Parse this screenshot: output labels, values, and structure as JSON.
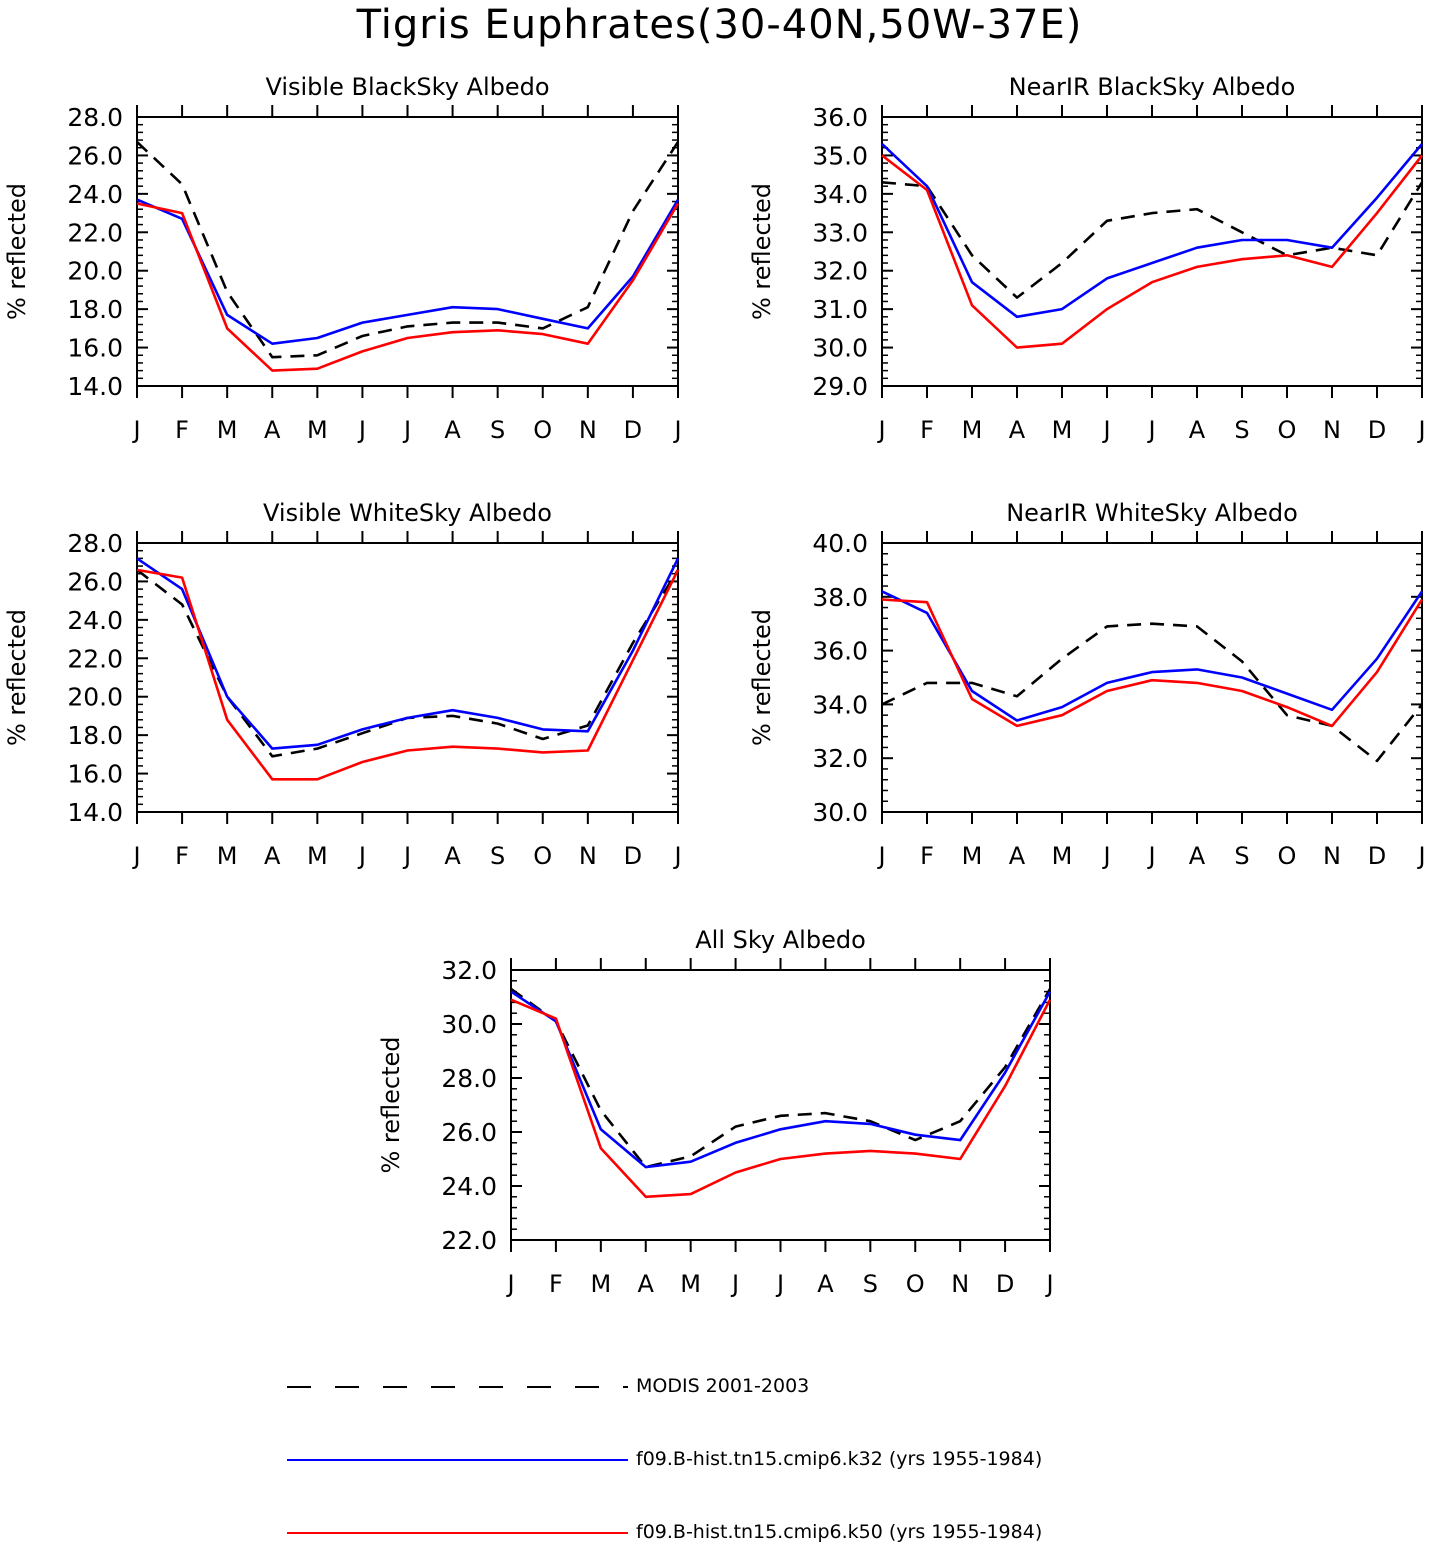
{
  "page_title": "Tigris Euphrates(30-40N,50W-37E)",
  "colors": {
    "MODIS": "#000000",
    "k32": "#0000ff",
    "k50": "#ff0000"
  },
  "legend": [
    {
      "key": "MODIS",
      "label": "MODIS 2001-2003",
      "style": "dashed"
    },
    {
      "key": "k32",
      "label": "f09.B-hist.tn15.cmip6.k32 (yrs 1955-1984)",
      "style": "solid"
    },
    {
      "key": "k50",
      "label": "f09.B-hist.tn15.cmip6.k50 (yrs 1955-1984)",
      "style": "solid"
    }
  ],
  "chart_data": [
    {
      "type": "line",
      "title": "Visible BlackSky Albedo",
      "ylabel": "% reflected",
      "categories": [
        "J",
        "F",
        "M",
        "A",
        "M",
        "J",
        "J",
        "A",
        "S",
        "O",
        "N",
        "D",
        "J"
      ],
      "ylim": [
        14.0,
        28.0
      ],
      "yticks": [
        "14.0",
        "16.0",
        "18.0",
        "20.0",
        "22.0",
        "24.0",
        "26.0",
        "28.0"
      ],
      "series": [
        {
          "name": "MODIS 2001-2003",
          "key": "MODIS",
          "values": [
            26.7,
            24.5,
            18.9,
            15.5,
            15.6,
            16.6,
            17.1,
            17.3,
            17.3,
            17.0,
            18.1,
            23.1,
            26.7
          ]
        },
        {
          "name": "f09.B-hist.tn15.cmip6.k32 (yrs 1955-1984)",
          "key": "k32",
          "values": [
            23.7,
            22.7,
            17.7,
            16.2,
            16.5,
            17.3,
            17.7,
            18.1,
            18.0,
            17.5,
            17.0,
            19.7,
            23.7
          ]
        },
        {
          "name": "f09.B-hist.tn15.cmip6.k50 (yrs 1955-1984)",
          "key": "k50",
          "values": [
            23.5,
            23.0,
            17.0,
            14.8,
            14.9,
            15.8,
            16.5,
            16.8,
            16.9,
            16.7,
            16.2,
            19.5,
            23.5
          ]
        }
      ]
    },
    {
      "type": "line",
      "title": "NearIR BlackSky Albedo",
      "ylabel": "% reflected",
      "categories": [
        "J",
        "F",
        "M",
        "A",
        "M",
        "J",
        "J",
        "A",
        "S",
        "O",
        "N",
        "D",
        "J"
      ],
      "ylim": [
        29.0,
        36.0
      ],
      "yticks": [
        "29.0",
        "30.0",
        "31.0",
        "32.0",
        "33.0",
        "34.0",
        "35.0",
        "36.0"
      ],
      "series": [
        {
          "name": "MODIS 2001-2003",
          "key": "MODIS",
          "values": [
            34.3,
            34.2,
            32.4,
            31.3,
            32.2,
            33.3,
            33.5,
            33.6,
            33.0,
            32.4,
            32.6,
            32.4,
            34.3
          ]
        },
        {
          "name": "f09.B-hist.tn15.cmip6.k32 (yrs 1955-1984)",
          "key": "k32",
          "values": [
            35.3,
            34.2,
            31.7,
            30.8,
            31.0,
            31.8,
            32.2,
            32.6,
            32.8,
            32.8,
            32.6,
            33.9,
            35.3
          ]
        },
        {
          "name": "f09.B-hist.tn15.cmip6.k50 (yrs 1955-1984)",
          "key": "k50",
          "values": [
            35.0,
            34.1,
            31.1,
            30.0,
            30.1,
            31.0,
            31.7,
            32.1,
            32.3,
            32.4,
            32.1,
            33.5,
            35.0
          ]
        }
      ]
    },
    {
      "type": "line",
      "title": "Visible WhiteSky Albedo",
      "ylabel": "% reflected",
      "categories": [
        "J",
        "F",
        "M",
        "A",
        "M",
        "J",
        "J",
        "A",
        "S",
        "O",
        "N",
        "D",
        "J"
      ],
      "ylim": [
        14.0,
        28.0
      ],
      "yticks": [
        "14.0",
        "16.0",
        "18.0",
        "20.0",
        "22.0",
        "24.0",
        "26.0",
        "28.0"
      ],
      "series": [
        {
          "name": "MODIS 2001-2003",
          "key": "MODIS",
          "values": [
            26.6,
            24.8,
            20.0,
            16.9,
            17.3,
            18.1,
            18.9,
            19.0,
            18.6,
            17.8,
            18.5,
            22.8,
            26.6
          ]
        },
        {
          "name": "f09.B-hist.tn15.cmip6.k32 (yrs 1955-1984)",
          "key": "k32",
          "values": [
            27.2,
            25.6,
            20.0,
            17.3,
            17.5,
            18.3,
            18.9,
            19.3,
            18.9,
            18.3,
            18.2,
            22.4,
            27.2
          ]
        },
        {
          "name": "f09.B-hist.tn15.cmip6.k50 (yrs 1955-1984)",
          "key": "k50",
          "values": [
            26.6,
            26.2,
            18.8,
            15.7,
            15.7,
            16.6,
            17.2,
            17.4,
            17.3,
            17.1,
            17.2,
            21.9,
            26.6
          ]
        }
      ]
    },
    {
      "type": "line",
      "title": "NearIR WhiteSky Albedo",
      "ylabel": "% reflected",
      "categories": [
        "J",
        "F",
        "M",
        "A",
        "M",
        "J",
        "J",
        "A",
        "S",
        "O",
        "N",
        "D",
        "J"
      ],
      "ylim": [
        30.0,
        40.0
      ],
      "yticks": [
        "30.0",
        "32.0",
        "34.0",
        "36.0",
        "38.0",
        "40.0"
      ],
      "series": [
        {
          "name": "MODIS 2001-2003",
          "key": "MODIS",
          "values": [
            34.0,
            34.8,
            34.8,
            34.3,
            35.7,
            36.9,
            37.0,
            36.9,
            35.6,
            33.6,
            33.2,
            31.9,
            34.0
          ]
        },
        {
          "name": "f09.B-hist.tn15.cmip6.k32 (yrs 1955-1984)",
          "key": "k32",
          "values": [
            38.2,
            37.4,
            34.5,
            33.4,
            33.9,
            34.8,
            35.2,
            35.3,
            35.0,
            34.4,
            33.8,
            35.7,
            38.2
          ]
        },
        {
          "name": "f09.B-hist.tn15.cmip6.k50 (yrs 1955-1984)",
          "key": "k50",
          "values": [
            37.9,
            37.8,
            34.2,
            33.2,
            33.6,
            34.5,
            34.9,
            34.8,
            34.5,
            33.9,
            33.2,
            35.2,
            37.9
          ]
        }
      ]
    },
    {
      "type": "line",
      "title": "All Sky Albedo",
      "ylabel": "% reflected",
      "categories": [
        "J",
        "F",
        "M",
        "A",
        "M",
        "J",
        "J",
        "A",
        "S",
        "O",
        "N",
        "D",
        "J"
      ],
      "ylim": [
        22.0,
        32.0
      ],
      "yticks": [
        "22.0",
        "24.0",
        "26.0",
        "28.0",
        "30.0",
        "32.0"
      ],
      "series": [
        {
          "name": "MODIS 2001-2003",
          "key": "MODIS",
          "values": [
            31.3,
            30.1,
            26.8,
            24.7,
            25.1,
            26.2,
            26.6,
            26.7,
            26.4,
            25.7,
            26.4,
            28.4,
            31.3
          ]
        },
        {
          "name": "f09.B-hist.tn15.cmip6.k32 (yrs 1955-1984)",
          "key": "k32",
          "values": [
            31.2,
            30.1,
            26.1,
            24.7,
            24.9,
            25.6,
            26.1,
            26.4,
            26.3,
            25.9,
            25.7,
            28.2,
            31.2
          ]
        },
        {
          "name": "f09.B-hist.tn15.cmip6.k50 (yrs 1955-1984)",
          "key": "k50",
          "values": [
            30.9,
            30.2,
            25.4,
            23.6,
            23.7,
            24.5,
            25.0,
            25.2,
            25.3,
            25.2,
            25.0,
            27.7,
            30.9
          ]
        }
      ]
    }
  ]
}
